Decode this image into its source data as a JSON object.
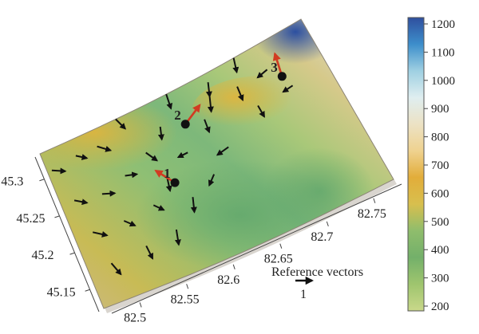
{
  "chart_data": {
    "type": "surface-vector-field",
    "title": "",
    "xlabel": "",
    "ylabel": "",
    "x_ticks": [
      "82.5",
      "82.55",
      "82.6",
      "82.65",
      "82.7",
      "82.75"
    ],
    "y_ticks": [
      "45.15",
      "45.2",
      "45.25",
      "45.3"
    ],
    "xlim": [
      82.47,
      82.78
    ],
    "ylim": [
      45.12,
      45.33
    ],
    "colorbar": {
      "min": 200,
      "max": 1200,
      "ticks": [
        "200",
        "300",
        "400",
        "500",
        "600",
        "700",
        "800",
        "900",
        "1000",
        "1100",
        "1200"
      ],
      "colors": [
        "#c9d88a",
        "#9fc56e",
        "#73b06a",
        "#8fbd6c",
        "#d8bf4e",
        "#e2ad3a",
        "#efd28f",
        "#ece2c4",
        "#dfeef0",
        "#9fd0e2",
        "#3d8ecb",
        "#2f4f9e"
      ]
    },
    "vectors": [
      {
        "x": 82.475,
        "y": 45.305,
        "u": 0.85,
        "v": -0.05
      },
      {
        "x": 82.485,
        "y": 45.26,
        "u": 0.8,
        "v": -0.15
      },
      {
        "x": 82.49,
        "y": 45.215,
        "u": 0.9,
        "v": -0.2
      },
      {
        "x": 82.495,
        "y": 45.17,
        "u": 0.6,
        "v": -0.7
      },
      {
        "x": 82.505,
        "y": 45.31,
        "u": 0.7,
        "v": -0.15
      },
      {
        "x": 82.515,
        "y": 45.255,
        "u": 0.8,
        "v": 0.05
      },
      {
        "x": 82.525,
        "y": 45.215,
        "u": 0.7,
        "v": -0.3
      },
      {
        "x": 82.535,
        "y": 45.175,
        "u": 0.4,
        "v": -0.8
      },
      {
        "x": 82.53,
        "y": 45.31,
        "u": 0.85,
        "v": -0.25
      },
      {
        "x": 82.545,
        "y": 45.265,
        "u": 0.75,
        "v": 0.1
      },
      {
        "x": 82.56,
        "y": 45.22,
        "u": 0.65,
        "v": -0.3
      },
      {
        "x": 82.57,
        "y": 45.18,
        "u": 0.15,
        "v": -0.95
      },
      {
        "x": 82.56,
        "y": 45.33,
        "u": 0.6,
        "v": -0.6
      },
      {
        "x": 82.575,
        "y": 45.28,
        "u": 0.7,
        "v": -0.5
      },
      {
        "x": 82.585,
        "y": 45.245,
        "u": 0.2,
        "v": -0.9
      },
      {
        "x": 82.6,
        "y": 45.21,
        "u": 0.1,
        "v": -0.95
      },
      {
        "x": 82.6,
        "y": 45.3,
        "u": 0.1,
        "v": -0.8
      },
      {
        "x": 82.615,
        "y": 45.26,
        "u": -0.6,
        "v": -0.3
      },
      {
        "x": 82.63,
        "y": 45.225,
        "u": -0.3,
        "v": -0.7
      },
      {
        "x": 82.62,
        "y": 45.33,
        "u": 0.3,
        "v": -0.9
      },
      {
        "x": 82.645,
        "y": 45.285,
        "u": 0.3,
        "v": -0.8
      },
      {
        "x": 82.655,
        "y": 45.245,
        "u": -0.7,
        "v": -0.5
      },
      {
        "x": 82.665,
        "y": 45.32,
        "u": 0.1,
        "v": -0.9
      },
      {
        "x": 82.69,
        "y": 45.3,
        "u": 0.35,
        "v": -0.85
      },
      {
        "x": 82.7,
        "y": 45.27,
        "u": 0.4,
        "v": -0.7
      },
      {
        "x": 82.725,
        "y": 45.3,
        "u": -0.6,
        "v": -0.5
      },
      {
        "x": 82.74,
        "y": 45.27,
        "u": -0.6,
        "v": -0.4
      },
      {
        "x": 82.7,
        "y": 45.33,
        "u": 0.2,
        "v": -0.9
      },
      {
        "x": 82.66,
        "y": 45.305,
        "u": 0.1,
        "v": -0.95
      }
    ],
    "points": [
      {
        "label": "1",
        "x": 82.59,
        "y": 45.235,
        "u": -0.8,
        "v": 0.5
      },
      {
        "label": "2",
        "x": 82.625,
        "y": 45.29,
        "u": 0.6,
        "v": 0.8
      },
      {
        "label": "3",
        "x": 82.735,
        "y": 45.285,
        "u": -0.3,
        "v": 0.95
      }
    ],
    "reference_vector": {
      "text": "Reference vectors",
      "value": "1",
      "u": 1,
      "v": 0
    }
  }
}
